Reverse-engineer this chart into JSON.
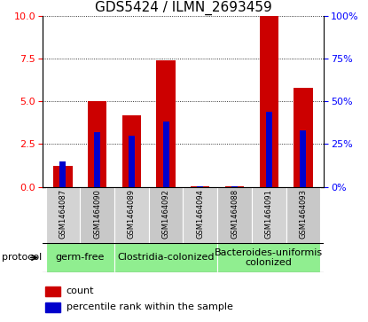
{
  "title": "GDS5424 / ILMN_2693459",
  "samples": [
    "GSM1464087",
    "GSM1464090",
    "GSM1464089",
    "GSM1464092",
    "GSM1464094",
    "GSM1464088",
    "GSM1464091",
    "GSM1464093"
  ],
  "count_values": [
    1.2,
    5.0,
    4.2,
    7.4,
    0.05,
    0.05,
    10.0,
    5.8
  ],
  "percentile_values": [
    1.5,
    3.2,
    3.0,
    3.8,
    0.05,
    0.05,
    4.4,
    3.3
  ],
  "ylim_left": [
    0,
    10
  ],
  "ylim_right": [
    0,
    100
  ],
  "yticks_left": [
    0,
    2.5,
    5.0,
    7.5,
    10
  ],
  "yticks_right": [
    0,
    25,
    50,
    75,
    100
  ],
  "bar_color": "#cc0000",
  "percentile_color": "#0000cc",
  "protocols": [
    {
      "label": "germ-free",
      "start": 0,
      "end": 2
    },
    {
      "label": "Clostridia-colonized",
      "start": 2,
      "end": 5
    },
    {
      "label": "Bacteroides-uniformis\ncolonized",
      "start": 5,
      "end": 8
    }
  ],
  "protocol_bg_color": "#90ee90",
  "sample_bg_colors": [
    "#d3d3d3",
    "#c0c0c0",
    "#d3d3d3",
    "#c0c0c0",
    "#d3d3d3",
    "#c0c0c0",
    "#d3d3d3",
    "#c0c0c0"
  ],
  "protocol_label": "protocol",
  "legend_count_label": "count",
  "legend_percentile_label": "percentile rank within the sample",
  "bar_width": 0.55,
  "percentile_bar_width": 0.18,
  "title_fontsize": 11,
  "tick_fontsize": 8,
  "sample_fontsize": 6,
  "legend_fontsize": 8,
  "protocol_fontsize": 8
}
